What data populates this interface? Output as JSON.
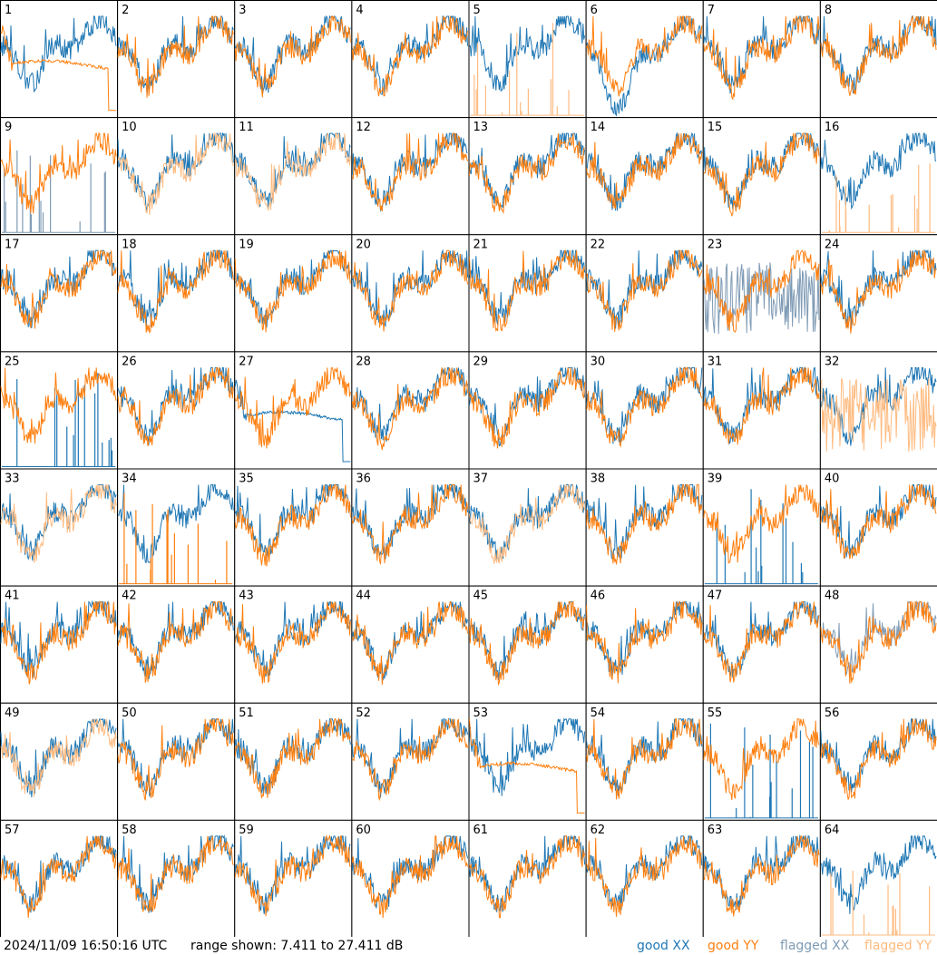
{
  "footer": {
    "timestamp": "2024/11/09 16:50:16 UTC",
    "range_text": "range shown: 7.411 to 27.411 dB"
  },
  "legend": [
    {
      "key": "good_xx",
      "label": "good XX",
      "color": "#1f77b4"
    },
    {
      "key": "good_yy",
      "label": "good YY",
      "color": "#ff7f0e"
    },
    {
      "key": "flagged_xx",
      "label": "flagged XX",
      "color": "#7f9bb5"
    },
    {
      "key": "flagged_yy",
      "label": "flagged YY",
      "color": "#ffbb80"
    }
  ],
  "chart_data": {
    "type": "line",
    "title": "",
    "ylim_db": [
      7.411,
      27.411
    ],
    "grid_rows": 8,
    "grid_cols": 8,
    "series_names": [
      "good XX",
      "good YY",
      "flagged XX",
      "flagged YY"
    ],
    "panels": [
      {
        "id": "1",
        "xx": "good",
        "yy": "good",
        "shape": "failing-yy"
      },
      {
        "id": "2",
        "xx": "good",
        "yy": "good",
        "shape": "normal"
      },
      {
        "id": "3",
        "xx": "good",
        "yy": "good",
        "shape": "normal"
      },
      {
        "id": "4",
        "xx": "good",
        "yy": "good",
        "shape": "normal"
      },
      {
        "id": "5",
        "xx": "good",
        "yy": "flagged",
        "shape": "spikes-yy"
      },
      {
        "id": "6",
        "xx": "good",
        "yy": "good",
        "shape": "dip-xx"
      },
      {
        "id": "7",
        "xx": "good",
        "yy": "good",
        "shape": "normal"
      },
      {
        "id": "8",
        "xx": "good",
        "yy": "good",
        "shape": "normal"
      },
      {
        "id": "9",
        "xx": "flagged",
        "yy": "good",
        "shape": "spikes-xx"
      },
      {
        "id": "10",
        "xx": "good",
        "yy": "flagged",
        "shape": "normal"
      },
      {
        "id": "11",
        "xx": "good",
        "yy": "flagged",
        "shape": "normal"
      },
      {
        "id": "12",
        "xx": "good",
        "yy": "good",
        "shape": "normal"
      },
      {
        "id": "13",
        "xx": "good",
        "yy": "good",
        "shape": "normal"
      },
      {
        "id": "14",
        "xx": "good",
        "yy": "good",
        "shape": "normal"
      },
      {
        "id": "15",
        "xx": "good",
        "yy": "good",
        "shape": "normal"
      },
      {
        "id": "16",
        "xx": "good",
        "yy": "flagged",
        "shape": "spikes-yy"
      },
      {
        "id": "17",
        "xx": "good",
        "yy": "good",
        "shape": "normal"
      },
      {
        "id": "18",
        "xx": "good",
        "yy": "good",
        "shape": "normal"
      },
      {
        "id": "19",
        "xx": "good",
        "yy": "good",
        "shape": "normal"
      },
      {
        "id": "20",
        "xx": "good",
        "yy": "good",
        "shape": "normal"
      },
      {
        "id": "21",
        "xx": "good",
        "yy": "good",
        "shape": "normal"
      },
      {
        "id": "22",
        "xx": "good",
        "yy": "good",
        "shape": "normal"
      },
      {
        "id": "23",
        "xx": "flagged",
        "yy": "good",
        "shape": "noisy-xx"
      },
      {
        "id": "24",
        "xx": "good",
        "yy": "good",
        "shape": "normal"
      },
      {
        "id": "25",
        "xx": "good",
        "yy": "good",
        "shape": "spikes-xx"
      },
      {
        "id": "26",
        "xx": "good",
        "yy": "good",
        "shape": "normal"
      },
      {
        "id": "27",
        "xx": "good",
        "yy": "good",
        "shape": "failing-xx"
      },
      {
        "id": "28",
        "xx": "good",
        "yy": "good",
        "shape": "normal"
      },
      {
        "id": "29",
        "xx": "good",
        "yy": "good",
        "shape": "normal"
      },
      {
        "id": "30",
        "xx": "good",
        "yy": "good",
        "shape": "normal"
      },
      {
        "id": "31",
        "xx": "good",
        "yy": "good",
        "shape": "normal"
      },
      {
        "id": "32",
        "xx": "good",
        "yy": "flagged",
        "shape": "noisy-yy"
      },
      {
        "id": "33",
        "xx": "good",
        "yy": "flagged",
        "shape": "normal"
      },
      {
        "id": "34",
        "xx": "good",
        "yy": "good",
        "shape": "spikes-yy"
      },
      {
        "id": "35",
        "xx": "good",
        "yy": "good",
        "shape": "normal"
      },
      {
        "id": "36",
        "xx": "good",
        "yy": "good",
        "shape": "normal"
      },
      {
        "id": "37",
        "xx": "good",
        "yy": "flagged",
        "shape": "normal"
      },
      {
        "id": "38",
        "xx": "good",
        "yy": "good",
        "shape": "normal"
      },
      {
        "id": "39",
        "xx": "good",
        "yy": "good",
        "shape": "spikes-xx"
      },
      {
        "id": "40",
        "xx": "good",
        "yy": "good",
        "shape": "normal"
      },
      {
        "id": "41",
        "xx": "good",
        "yy": "good",
        "shape": "normal"
      },
      {
        "id": "42",
        "xx": "good",
        "yy": "good",
        "shape": "normal"
      },
      {
        "id": "43",
        "xx": "good",
        "yy": "good",
        "shape": "normal"
      },
      {
        "id": "44",
        "xx": "good",
        "yy": "good",
        "shape": "normal"
      },
      {
        "id": "45",
        "xx": "good",
        "yy": "good",
        "shape": "normal"
      },
      {
        "id": "46",
        "xx": "good",
        "yy": "good",
        "shape": "normal"
      },
      {
        "id": "47",
        "xx": "good",
        "yy": "good",
        "shape": "normal"
      },
      {
        "id": "48",
        "xx": "flagged",
        "yy": "good",
        "shape": "normal"
      },
      {
        "id": "49",
        "xx": "good",
        "yy": "flagged",
        "shape": "normal"
      },
      {
        "id": "50",
        "xx": "good",
        "yy": "good",
        "shape": "normal"
      },
      {
        "id": "51",
        "xx": "good",
        "yy": "good",
        "shape": "normal"
      },
      {
        "id": "52",
        "xx": "good",
        "yy": "good",
        "shape": "normal"
      },
      {
        "id": "53",
        "xx": "good",
        "yy": "good",
        "shape": "failing-yy"
      },
      {
        "id": "54",
        "xx": "good",
        "yy": "good",
        "shape": "normal"
      },
      {
        "id": "55",
        "xx": "good",
        "yy": "good",
        "shape": "spikes-xx"
      },
      {
        "id": "56",
        "xx": "good",
        "yy": "good",
        "shape": "normal"
      },
      {
        "id": "57",
        "xx": "good",
        "yy": "good",
        "shape": "normal"
      },
      {
        "id": "58",
        "xx": "good",
        "yy": "good",
        "shape": "normal"
      },
      {
        "id": "59",
        "xx": "good",
        "yy": "good",
        "shape": "normal"
      },
      {
        "id": "60",
        "xx": "good",
        "yy": "good",
        "shape": "normal"
      },
      {
        "id": "61",
        "xx": "good",
        "yy": "good",
        "shape": "normal"
      },
      {
        "id": "62",
        "xx": "good",
        "yy": "good",
        "shape": "normal"
      },
      {
        "id": "63",
        "xx": "good",
        "yy": "good",
        "shape": "normal"
      },
      {
        "id": "64",
        "xx": "good",
        "yy": "flagged",
        "shape": "spikes-yy"
      }
    ]
  }
}
